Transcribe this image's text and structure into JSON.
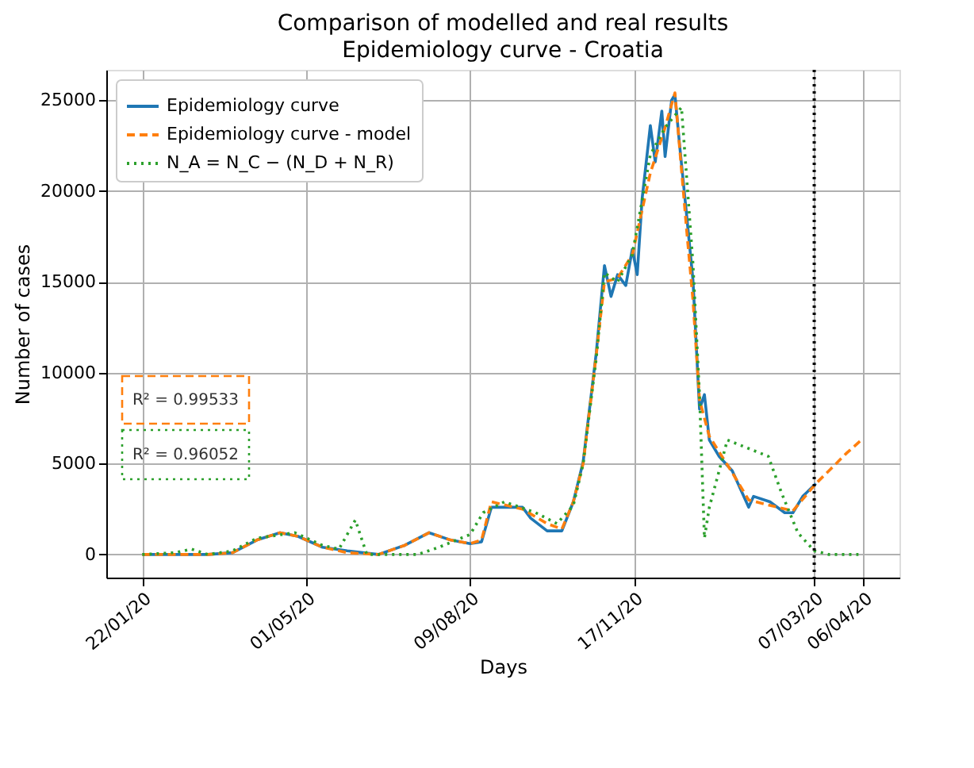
{
  "chart_data": {
    "type": "line",
    "title": "Comparison of modelled and real results",
    "subtitle": "Epidemiology curve - Croatia",
    "xlabel": "Days",
    "ylabel": "Number of cases",
    "series": [
      {
        "name": "Epidemiology curve",
        "color": "#1f77b4",
        "line_style": "solid",
        "x": [
          "2020-01-22",
          "2020-02-11",
          "2020-03-02",
          "2020-03-17",
          "2020-04-01",
          "2020-04-15",
          "2020-04-26",
          "2020-05-11",
          "2020-05-26",
          "2020-06-14",
          "2020-06-30",
          "2020-07-15",
          "2020-07-28",
          "2020-08-09",
          "2020-08-16",
          "2020-08-22",
          "2020-08-25",
          "2020-09-10",
          "2020-09-15",
          "2020-09-25",
          "2020-10-04",
          "2020-10-11",
          "2020-10-17",
          "2020-10-25",
          "2020-10-30",
          "2020-11-03",
          "2020-11-07",
          "2020-11-12",
          "2020-11-16",
          "2020-11-19",
          "2020-11-22",
          "2020-11-27",
          "2020-11-30",
          "2020-12-04",
          "2020-12-06",
          "2020-12-10",
          "2020-12-12",
          "2020-12-15",
          "2020-12-19",
          "2020-12-23",
          "2020-12-27",
          "2020-12-30",
          "2021-01-02",
          "2021-01-08",
          "2021-01-16",
          "2021-01-26",
          "2021-01-29",
          "2021-02-08",
          "2021-02-17",
          "2021-02-22",
          "2021-02-28",
          "2021-03-08"
        ],
        "values": [
          0,
          0,
          0,
          100,
          800,
          1200,
          1000,
          400,
          200,
          0,
          500,
          1200,
          800,
          600,
          700,
          2600,
          2600,
          2600,
          2000,
          1300,
          1300,
          2900,
          5100,
          11100,
          15900,
          14200,
          15400,
          14800,
          16800,
          15400,
          19600,
          23600,
          21600,
          24400,
          21900,
          25000,
          25300,
          22400,
          18800,
          15100,
          8000,
          8800,
          6300,
          5400,
          4600,
          2600,
          3200,
          2900,
          2300,
          2300,
          3200,
          3900
        ]
      },
      {
        "name": "Epidemiology curve - model",
        "color": "#ff7f0e",
        "line_style": "dashed",
        "x": [
          "2020-01-22",
          "2020-02-11",
          "2020-03-02",
          "2020-03-17",
          "2020-04-01",
          "2020-04-15",
          "2020-04-26",
          "2020-05-11",
          "2020-05-26",
          "2020-06-14",
          "2020-06-30",
          "2020-07-15",
          "2020-07-28",
          "2020-08-09",
          "2020-08-16",
          "2020-08-22",
          "2020-09-10",
          "2020-09-25",
          "2020-10-04",
          "2020-10-11",
          "2020-10-17",
          "2020-10-25",
          "2020-10-30",
          "2020-11-07",
          "2020-11-16",
          "2020-11-27",
          "2020-12-06",
          "2020-12-12",
          "2020-12-19",
          "2020-12-23",
          "2020-12-27",
          "2021-01-02",
          "2021-01-16",
          "2021-01-26",
          "2021-02-08",
          "2021-02-22",
          "2021-03-08",
          "2021-03-17",
          "2021-03-27",
          "2021-04-06"
        ],
        "values": [
          0,
          0,
          0,
          100,
          800,
          1200,
          1000,
          400,
          100,
          0,
          500,
          1200,
          800,
          600,
          800,
          2900,
          2500,
          1700,
          1400,
          2900,
          5000,
          11000,
          15000,
          15200,
          16500,
          21000,
          23500,
          25400,
          18000,
          14000,
          8500,
          6500,
          4500,
          3000,
          2700,
          2400,
          3900,
          4700,
          5600,
          6400
        ]
      },
      {
        "name": "N_A = N_C − (N_D + N_R)",
        "color": "#2ca02c",
        "line_style": "dotted",
        "x": [
          "2020-01-22",
          "2020-02-11",
          "2020-02-21",
          "2020-03-02",
          "2020-03-17",
          "2020-04-01",
          "2020-04-24",
          "2020-05-11",
          "2020-05-21",
          "2020-05-31",
          "2020-06-07",
          "2020-07-08",
          "2020-07-21",
          "2020-08-09",
          "2020-08-17",
          "2020-08-30",
          "2020-09-18",
          "2020-10-01",
          "2020-10-11",
          "2020-10-17",
          "2020-10-25",
          "2020-10-30",
          "2020-11-07",
          "2020-11-16",
          "2020-11-27",
          "2020-12-06",
          "2020-12-16",
          "2020-12-23",
          "2020-12-27",
          "2020-12-30",
          "2021-01-02",
          "2021-01-13",
          "2021-02-07",
          "2021-02-15",
          "2021-02-25",
          "2021-03-07",
          "2021-03-16",
          "2021-04-03"
        ],
        "values": [
          0,
          100,
          300,
          0,
          200,
          900,
          1200,
          500,
          300,
          1900,
          0,
          0,
          400,
          1100,
          2300,
          2900,
          2300,
          1700,
          2700,
          5000,
          10800,
          15500,
          15000,
          16500,
          22000,
          23500,
          24600,
          16000,
          8800,
          900,
          2600,
          6300,
          5400,
          3400,
          1200,
          200,
          0,
          0
        ]
      }
    ],
    "xlim": [
      "2019-12-31",
      "2021-04-28"
    ],
    "xticks": [
      {
        "value": "2020-01-22",
        "label": "22/01/20"
      },
      {
        "value": "2020-05-01",
        "label": "01/05/20"
      },
      {
        "value": "2020-08-09",
        "label": "09/08/20"
      },
      {
        "value": "2020-11-17",
        "label": "17/11/20"
      },
      {
        "value": "2021-03-07",
        "label": "07/03/20"
      },
      {
        "value": "2021-04-06",
        "label": "06/04/20"
      }
    ],
    "ylim": [
      -1270,
      26670
    ],
    "yticks": [
      0,
      5000,
      10000,
      15000,
      20000,
      25000
    ],
    "ref_lines": [
      {
        "axis": "x",
        "value": "2021-03-07",
        "color": "#000000",
        "line_style": "dotted"
      }
    ],
    "annotations": [
      "R² = 0.99533",
      "R² = 0.96052"
    ],
    "grid": true,
    "legend": "top left"
  }
}
